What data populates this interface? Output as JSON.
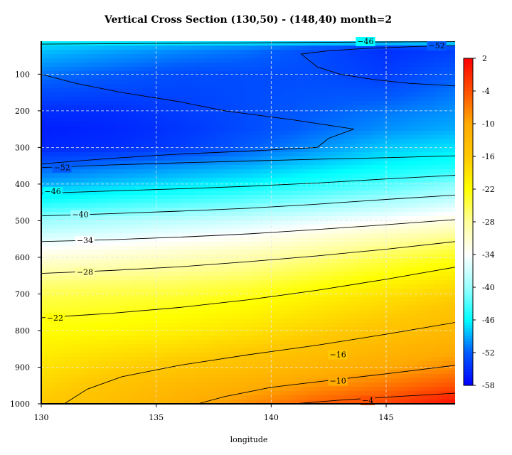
{
  "chart_data": {
    "type": "heatmap",
    "subtype": "filled-contour",
    "title": "Vertical Cross Section (130,50) - (148,40) month=2",
    "xlabel": "longitude",
    "ylabel": "",
    "xlim": [
      130,
      148
    ],
    "ylim": [
      1000,
      10
    ],
    "x_ticks": [
      130,
      135,
      140,
      145
    ],
    "y_ticks": [
      100,
      200,
      300,
      400,
      500,
      600,
      700,
      800,
      900,
      1000
    ],
    "grid": true,
    "colorbar": {
      "placement": "right",
      "min": -58,
      "max": 2,
      "ticks": [
        2,
        -4,
        -10,
        -16,
        -22,
        -28,
        -34,
        -40,
        -46,
        -52,
        -58
      ],
      "stops": [
        {
          "value": -58,
          "color": "#0000ff"
        },
        {
          "value": -52,
          "color": "#005bff"
        },
        {
          "value": -46,
          "color": "#00ffff"
        },
        {
          "value": -40,
          "color": "#9bffff"
        },
        {
          "value": -34,
          "color": "#ffffff"
        },
        {
          "value": -28,
          "color": "#ffff9b"
        },
        {
          "value": -22,
          "color": "#ffff00"
        },
        {
          "value": -16,
          "color": "#ffc800"
        },
        {
          "value": -10,
          "color": "#ffaa00"
        },
        {
          "value": -4,
          "color": "#ff5000"
        },
        {
          "value": 2,
          "color": "#ff0000"
        }
      ]
    },
    "fill_grid": {
      "x": [
        130,
        133,
        136,
        139,
        142,
        145,
        148
      ],
      "y": [
        10,
        30,
        100,
        200,
        250,
        300,
        350,
        400,
        450,
        500,
        550,
        600,
        650,
        700,
        800,
        900,
        950,
        1000
      ],
      "values": [
        [
          -46,
          -46,
          -46,
          -46,
          -46,
          -46,
          -46
        ],
        [
          -48,
          -49,
          -50,
          -51,
          -53,
          -55,
          -54
        ],
        [
          -51,
          -52,
          -53,
          -53,
          -53,
          -54,
          -52
        ],
        [
          -55,
          -55,
          -54,
          -53,
          -52,
          -51,
          -50
        ],
        [
          -56,
          -55.5,
          -54.5,
          -53,
          -51.5,
          -50,
          -49
        ],
        [
          -55.5,
          -55,
          -54,
          -52,
          -50,
          -48,
          -47
        ],
        [
          -52,
          -51,
          -50,
          -49,
          -47.5,
          -46,
          -45
        ],
        [
          -49,
          -48,
          -47,
          -46,
          -44.5,
          -43,
          -41
        ],
        [
          -45,
          -44,
          -43,
          -42,
          -40.5,
          -39,
          -37
        ],
        [
          -40,
          -39,
          -38,
          -37,
          -35.5,
          -34,
          -32
        ],
        [
          -36,
          -35,
          -34,
          -33,
          -31,
          -29,
          -27
        ],
        [
          -32,
          -31,
          -30,
          -29,
          -27,
          -25,
          -23
        ],
        [
          -28,
          -27.5,
          -27,
          -26,
          -24,
          -22,
          -20
        ],
        [
          -25,
          -24.5,
          -24,
          -23,
          -21,
          -19,
          -17
        ],
        [
          -22,
          -21.5,
          -20.5,
          -19,
          -17,
          -15,
          -13
        ],
        [
          -19,
          -17,
          -15.5,
          -14,
          -12,
          -10,
          -8
        ],
        [
          -17.5,
          -15,
          -13,
          -11,
          -8.5,
          -6.5,
          -4
        ],
        [
          -16,
          -14,
          -11,
          -8,
          -5,
          -3,
          1
        ]
      ]
    },
    "contours": [
      {
        "level": -46,
        "label": "−46",
        "label_at": [
          144.1,
          10
        ],
        "points": [
          [
            130,
            18
          ],
          [
            135,
            16
          ],
          [
            140,
            14
          ],
          [
            145,
            12
          ],
          [
            148,
            11
          ]
        ]
      },
      {
        "level": -52,
        "label": "−52",
        "label_at": [
          147.2,
          22
        ],
        "points": [
          [
            148,
            132
          ],
          [
            146,
            125
          ],
          [
            144.5,
            115
          ],
          [
            143,
            100
          ],
          [
            142,
            80
          ],
          [
            141.3,
            45
          ],
          [
            142.5,
            36
          ],
          [
            144,
            30
          ],
          [
            146.5,
            24
          ],
          [
            148,
            22
          ]
        ]
      },
      {
        "level": -52,
        "label": "",
        "label_at": null,
        "points": [
          [
            130,
            100
          ],
          [
            131.5,
            125
          ],
          [
            133.5,
            150
          ],
          [
            136,
            175
          ],
          [
            138,
            200
          ],
          [
            141,
            225
          ],
          [
            143.6,
            250
          ],
          [
            142.5,
            275
          ],
          [
            142,
            300
          ],
          [
            139,
            310
          ],
          [
            136,
            318
          ],
          [
            133,
            330
          ],
          [
            130,
            345
          ]
        ]
      },
      {
        "level": -52,
        "label": "−52",
        "label_at": [
          130.9,
          355
        ],
        "points": [
          [
            130,
            355
          ],
          [
            133,
            348
          ],
          [
            136,
            342
          ],
          [
            139,
            337
          ],
          [
            142,
            332
          ],
          [
            145,
            328
          ],
          [
            148,
            323
          ]
        ]
      },
      {
        "level": -46,
        "label": "−46",
        "label_at": [
          130.5,
          420
        ],
        "points": [
          [
            130,
            425
          ],
          [
            133,
            419
          ],
          [
            136,
            413
          ],
          [
            139,
            406
          ],
          [
            142,
            397
          ],
          [
            145,
            386
          ],
          [
            148,
            376
          ]
        ]
      },
      {
        "level": -40,
        "label": "−40",
        "label_at": [
          131.7,
          483
        ],
        "points": [
          [
            130,
            487
          ],
          [
            133,
            481
          ],
          [
            136,
            474
          ],
          [
            139,
            466
          ],
          [
            142,
            455
          ],
          [
            145,
            442
          ],
          [
            148,
            430
          ]
        ]
      },
      {
        "level": -34,
        "label": "−34",
        "label_at": [
          131.9,
          554
        ],
        "points": [
          [
            130,
            557
          ],
          [
            133,
            552
          ],
          [
            136,
            545
          ],
          [
            139,
            536
          ],
          [
            142,
            524
          ],
          [
            145,
            511
          ],
          [
            148,
            497
          ]
        ]
      },
      {
        "level": -28,
        "label": "−28",
        "label_at": [
          131.9,
          640
        ],
        "points": [
          [
            130,
            644
          ],
          [
            133,
            636
          ],
          [
            136,
            626
          ],
          [
            139,
            612
          ],
          [
            142,
            596
          ],
          [
            145,
            578
          ],
          [
            148,
            557
          ]
        ]
      },
      {
        "level": -22,
        "label": "−22",
        "label_at": [
          130.6,
          765
        ],
        "points": [
          [
            130,
            765
          ],
          [
            133,
            753
          ],
          [
            136,
            737
          ],
          [
            139,
            716
          ],
          [
            142,
            690
          ],
          [
            145,
            660
          ],
          [
            148,
            627
          ]
        ]
      },
      {
        "level": -16,
        "label": "−16",
        "label_at": [
          142.9,
          865
        ],
        "points": [
          [
            131,
            1000
          ],
          [
            132,
            960
          ],
          [
            133.5,
            926
          ],
          [
            136,
            895
          ],
          [
            139,
            866
          ],
          [
            142,
            840
          ],
          [
            145,
            810
          ],
          [
            148,
            778
          ]
        ]
      },
      {
        "level": -10,
        "label": "−10",
        "label_at": [
          142.9,
          937
        ],
        "points": [
          [
            136.8,
            1000
          ],
          [
            138,
            980
          ],
          [
            140,
            955
          ],
          [
            142,
            940
          ],
          [
            145,
            918
          ],
          [
            148,
            895
          ]
        ]
      },
      {
        "level": -4,
        "label": "−4",
        "label_at": [
          144.2,
          990
        ],
        "points": [
          [
            141,
            1000
          ],
          [
            143,
            990
          ],
          [
            145.5,
            980
          ],
          [
            148,
            971
          ]
        ]
      }
    ]
  }
}
